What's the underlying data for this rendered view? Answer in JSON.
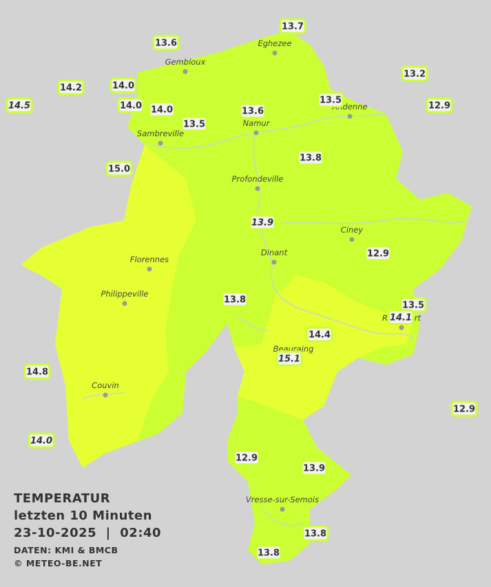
{
  "title": {
    "heading": "TEMPERATUR",
    "subheading": "letzten 10 Minuten",
    "datetime": "23-10-2025  |  02:40",
    "source": "DATEN: KMI & BMCB",
    "copyright": "© METEO-BE.NET"
  },
  "cities": [
    "Eghezee",
    "Gembloux",
    "Andenne",
    "Namur",
    "Sambreville",
    "Profondeville",
    "Ciney",
    "Dinant",
    "Florennes",
    "Philippeville",
    "Rochefort",
    "Beauraing",
    "Couvin",
    "Vresse-sur-Semois"
  ],
  "stations": [
    "13.7",
    "13.6",
    "13.2",
    "14.2",
    "14.0",
    "14.5",
    "14.0",
    "14.0",
    "13.6",
    "13.5",
    "12.9",
    "13.5",
    "15.0",
    "13.8",
    "13.9",
    "12.9",
    "13.8",
    "13.5",
    "14.1",
    "14.4",
    "15.1",
    "14.8",
    "12.9",
    "14.0",
    "12.9",
    "13.9",
    "13.8",
    "13.8"
  ]
}
